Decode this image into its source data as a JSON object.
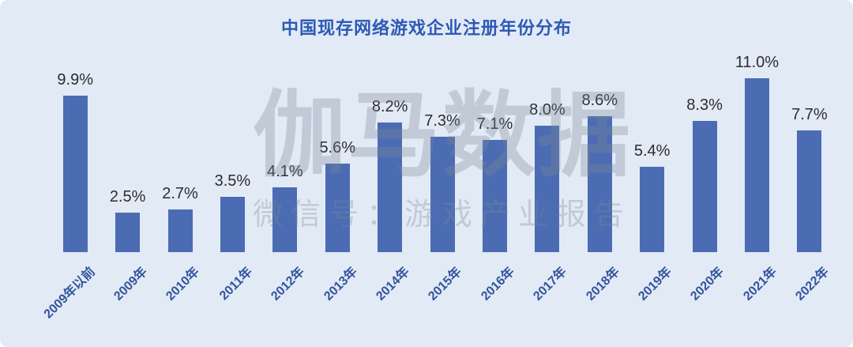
{
  "page": {
    "background_color": "#e2eaf6"
  },
  "chart_data": {
    "type": "bar",
    "title": "中国现存网络游戏企业注册年份分布",
    "categories": [
      "2009年以前",
      "2009年",
      "2010年",
      "2011年",
      "2012年",
      "2013年",
      "2014年",
      "2015年",
      "2016年",
      "2017年",
      "2018年",
      "2019年",
      "2020年",
      "2021年",
      "2022年"
    ],
    "values": [
      9.9,
      2.5,
      2.7,
      3.5,
      4.1,
      5.6,
      8.2,
      7.3,
      7.1,
      8.0,
      8.6,
      5.4,
      8.3,
      11.0,
      7.7
    ],
    "value_labels": [
      "9.9%",
      "2.5%",
      "2.7%",
      "3.5%",
      "4.1%",
      "5.6%",
      "8.2%",
      "7.3%",
      "7.1%",
      "8.0%",
      "8.6%",
      "5.4%",
      "8.3%",
      "11.0%",
      "7.7%"
    ],
    "xlabel": "",
    "ylabel": "",
    "ylim": [
      0,
      11.5
    ],
    "grid": false,
    "legend": false,
    "bar_color": "#4b6cb3",
    "title_color": "#2d5ab4",
    "value_label_color": "#2d2d2d",
    "category_label_color": "#32549d",
    "category_label_rotation_deg": -45
  },
  "watermark": {
    "line1": "伽马数据",
    "line2": "微信号：游戏产业报告",
    "color": "#7d8896"
  }
}
